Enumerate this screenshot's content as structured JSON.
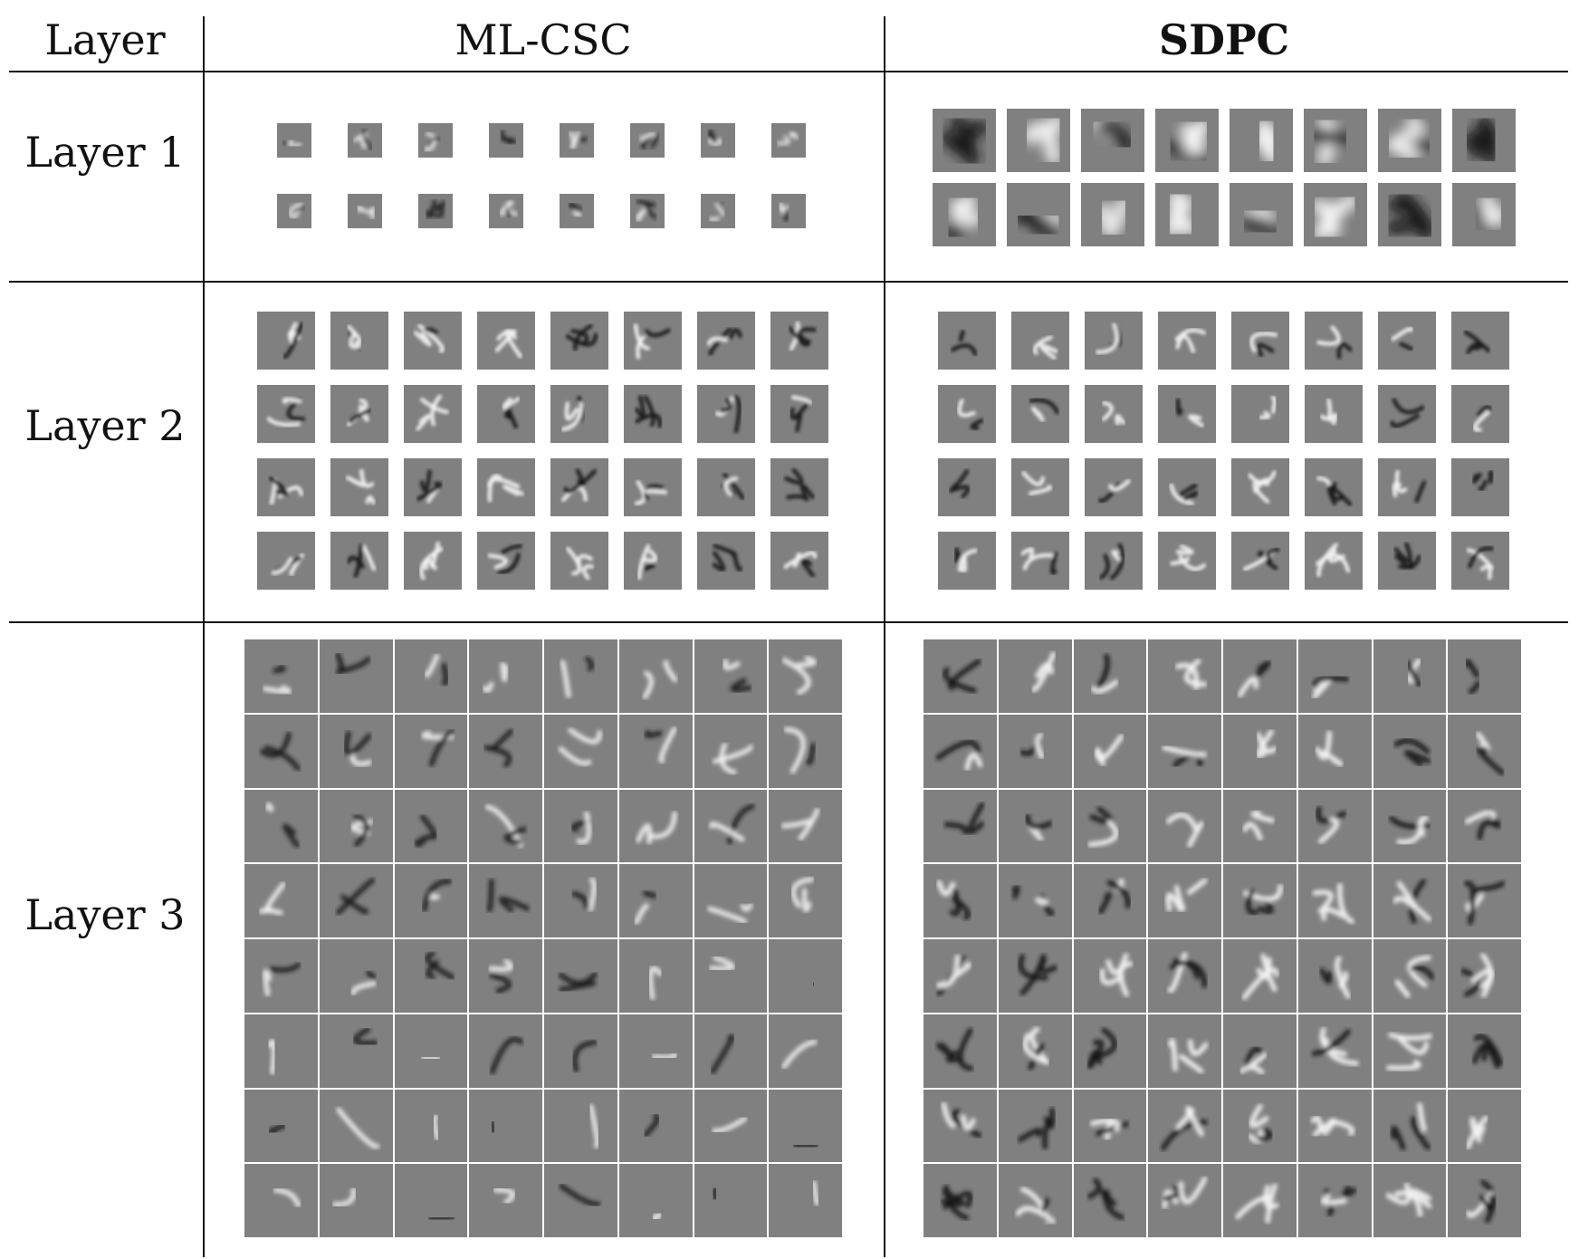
{
  "table": {
    "headers": {
      "layer": "Layer",
      "ml_csc": "ML-CSC",
      "sdpc": "SDPC"
    },
    "rows": [
      {
        "label": "Layer 1",
        "ml_csc": {
          "rows": 2,
          "cols": 8
        },
        "sdpc": {
          "rows": 2,
          "cols": 8
        }
      },
      {
        "label": "Layer 2",
        "ml_csc": {
          "rows": 4,
          "cols": 8
        },
        "sdpc": {
          "rows": 4,
          "cols": 8
        }
      },
      {
        "label": "Layer 3",
        "ml_csc": {
          "rows": 8,
          "cols": 8
        },
        "sdpc": {
          "rows": 8,
          "cols": 8
        }
      }
    ]
  },
  "colors": {
    "tile_gray": "#808080",
    "line": "#111111",
    "background": "#ffffff"
  }
}
